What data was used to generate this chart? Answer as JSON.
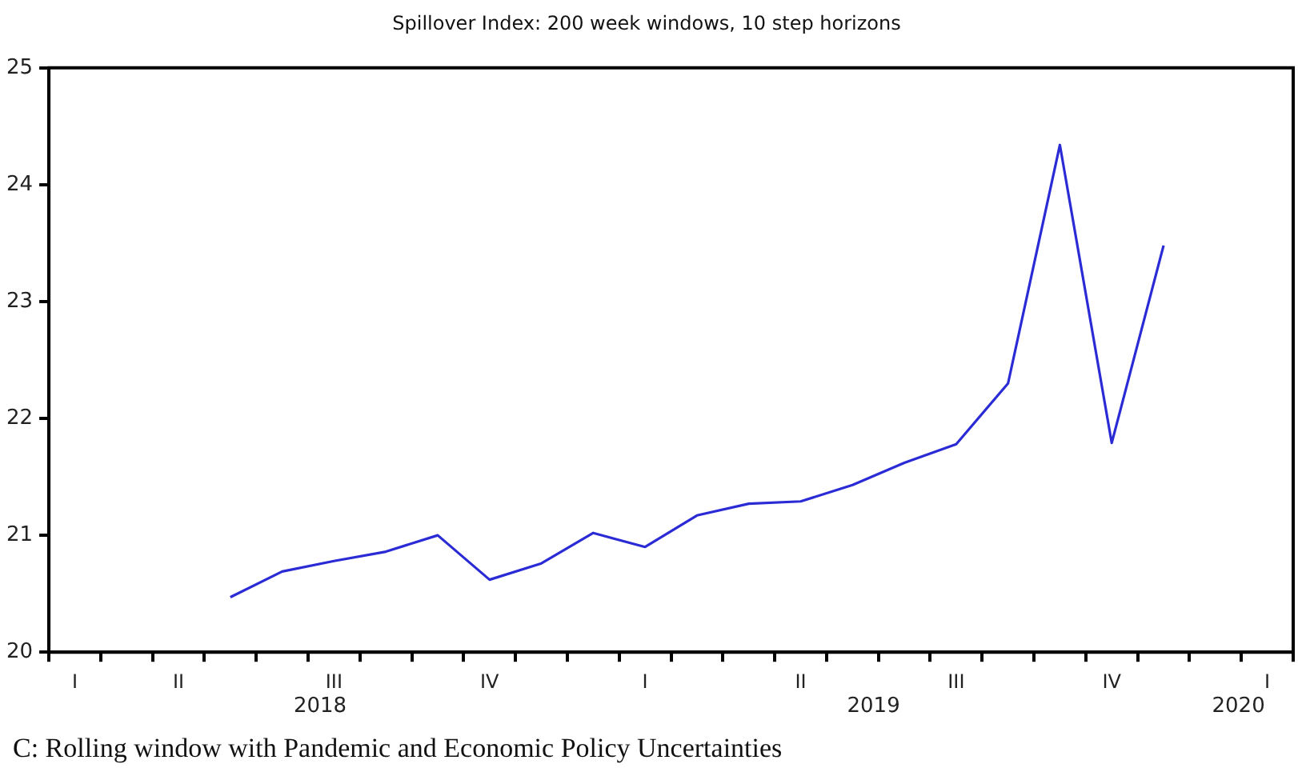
{
  "chart_data": {
    "type": "line",
    "title": "Spillover Index: 200 week windows, 10 step horizons",
    "annotations": [
      "2018",
      "2019",
      "2020",
      "C: Rolling window with Pandemic and Economic Policy Uncertainties"
    ],
    "categories": [
      "I",
      null,
      "II",
      null,
      null,
      "III",
      null,
      null,
      "IV",
      null,
      null,
      "I",
      null,
      null,
      "II",
      null,
      null,
      "III",
      null,
      null,
      "IV",
      null,
      null,
      "I"
    ],
    "series": [
      {
        "color": "#2b2bd6",
        "values": [
          null,
          null,
          null,
          20.47,
          20.69,
          20.78,
          20.86,
          21.0,
          20.62,
          20.76,
          21.02,
          20.9,
          21.17,
          21.27,
          21.29,
          21.43,
          21.62,
          21.78,
          22.3,
          24.34,
          21.79,
          23.48,
          null,
          null
        ]
      }
    ],
    "ylim": [
      20,
      25
    ],
    "yticks": [
      20,
      21,
      22,
      23,
      24,
      25
    ],
    "grid": false,
    "legend": false,
    "marker": "none",
    "line_style": "solid"
  }
}
